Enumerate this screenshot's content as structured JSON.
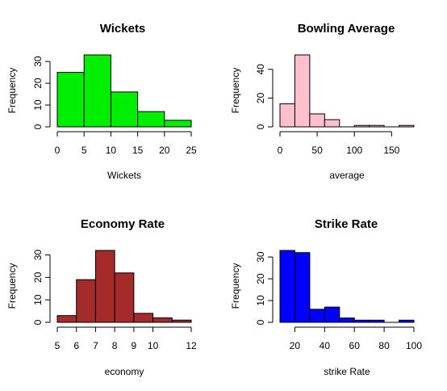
{
  "chart_data": [
    {
      "type": "bar",
      "title": "Wickets",
      "xlabel": "Wickets",
      "ylabel": "Frequency",
      "color": "#00ee00",
      "bins": [
        [
          0,
          5
        ],
        [
          5,
          10
        ],
        [
          10,
          15
        ],
        [
          15,
          20
        ],
        [
          20,
          25
        ]
      ],
      "values": [
        25,
        33,
        16,
        7,
        3
      ],
      "xlim": [
        0,
        25
      ],
      "ylim": [
        0,
        33
      ],
      "xticks": [
        0,
        5,
        10,
        15,
        20,
        25
      ],
      "yticks": [
        0,
        10,
        20,
        30
      ]
    },
    {
      "type": "bar",
      "title": "Bowling Average",
      "xlabel": "average",
      "ylabel": "Frequency",
      "color": "#ffc0cb",
      "bins": [
        [
          0,
          20
        ],
        [
          20,
          40
        ],
        [
          40,
          60
        ],
        [
          60,
          80
        ],
        [
          80,
          100
        ],
        [
          100,
          120
        ],
        [
          120,
          140
        ],
        [
          140,
          160
        ],
        [
          160,
          180
        ]
      ],
      "values": [
        16,
        50,
        9,
        5,
        0,
        1,
        1,
        0,
        1
      ],
      "xlim": [
        0,
        180
      ],
      "ylim": [
        0,
        50
      ],
      "xticks": [
        0,
        50,
        100,
        150
      ],
      "yticks": [
        0,
        20,
        40
      ]
    },
    {
      "type": "bar",
      "title": "Economy Rate",
      "xlabel": "economy",
      "ylabel": "Frequency",
      "color": "#a52a2a",
      "bins": [
        [
          5,
          6
        ],
        [
          6,
          7
        ],
        [
          7,
          8
        ],
        [
          8,
          9
        ],
        [
          9,
          10
        ],
        [
          10,
          11
        ],
        [
          11,
          12
        ]
      ],
      "values": [
        3,
        19,
        32,
        22,
        4,
        2,
        1
      ],
      "xlim": [
        5,
        12
      ],
      "ylim": [
        0,
        32
      ],
      "xticks": [
        5,
        6,
        7,
        8,
        9,
        10,
        12
      ],
      "yticks": [
        0,
        10,
        20,
        30
      ]
    },
    {
      "type": "bar",
      "title": "Strike Rate",
      "xlabel": "strike Rate",
      "ylabel": "Frequency",
      "color": "#0000ff",
      "bins": [
        [
          10,
          20
        ],
        [
          20,
          30
        ],
        [
          30,
          40
        ],
        [
          40,
          50
        ],
        [
          50,
          60
        ],
        [
          60,
          70
        ],
        [
          70,
          80
        ],
        [
          80,
          90
        ],
        [
          90,
          100
        ]
      ],
      "values": [
        33,
        32,
        6,
        7,
        2,
        1,
        1,
        0,
        1
      ],
      "xlim": [
        10,
        100
      ],
      "ylim": [
        0,
        33
      ],
      "xticks": [
        20,
        40,
        60,
        80,
        100
      ],
      "yticks": [
        0,
        10,
        20,
        30
      ]
    }
  ]
}
